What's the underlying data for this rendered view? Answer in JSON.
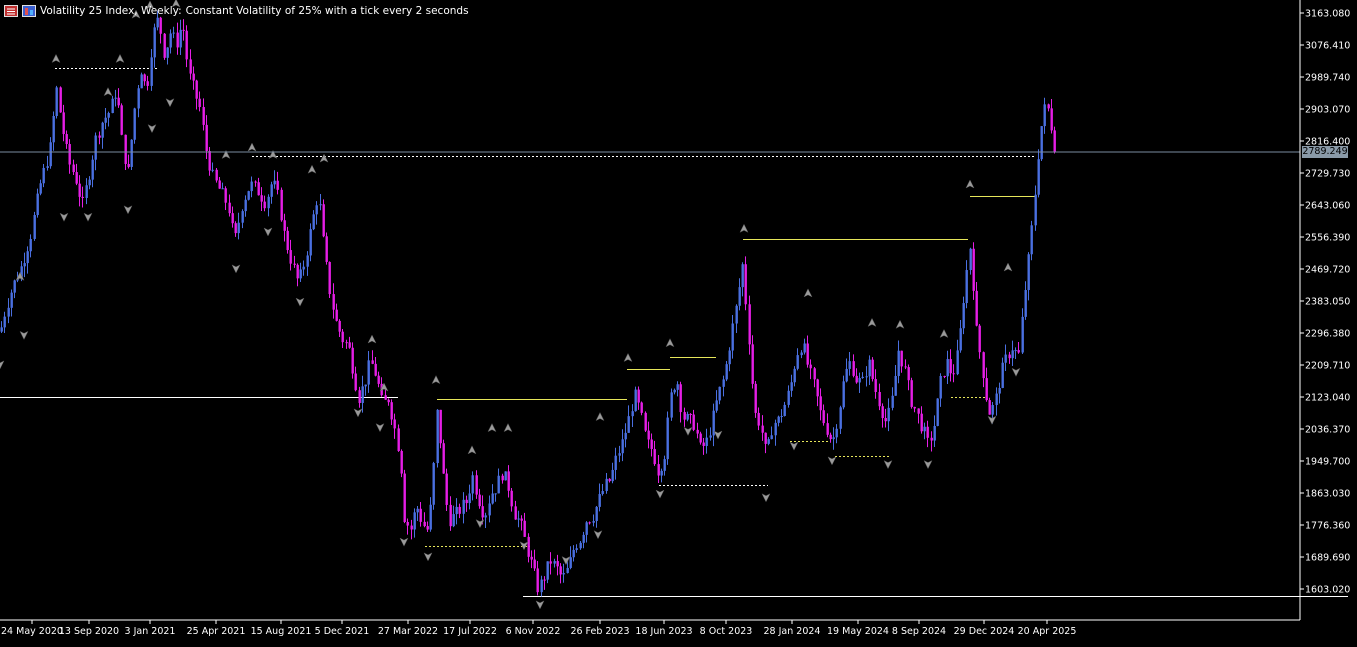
{
  "header": {
    "symbol_title": "Volatility 25 Index, Weekly:",
    "description": "Constant Volatility of 25% with a tick every 2 seconds"
  },
  "price_axis": {
    "tick_labels": [
      "3163.080",
      "3076.410",
      "2989.740",
      "2903.070",
      "2816.400",
      "2729.730",
      "2643.060",
      "2556.390",
      "2469.720",
      "2383.050",
      "2296.380",
      "2209.710",
      "2123.040",
      "2036.370",
      "1949.700",
      "1863.030",
      "1776.360",
      "1689.690",
      "1603.020"
    ],
    "current_price": "2789.249"
  },
  "time_axis": {
    "tick_labels": [
      "24 May 2020",
      "13 Sep 2020",
      "3 Jan 2021",
      "25 Apr 2021",
      "15 Aug 2021",
      "5 Dec 2021",
      "27 Mar 2022",
      "17 Jul 2022",
      "6 Nov 2022",
      "26 Feb 2023",
      "18 Jun 2023",
      "8 Oct 2023",
      "28 Jan 2024",
      "19 May 2024",
      "8 Sep 2024",
      "29 Dec 2024",
      "20 Apr 2025"
    ]
  },
  "colors": {
    "background": "#000000",
    "bull_candle": "#4a6fe0",
    "bear_candle": "#e61ee6",
    "grid_text": "#ffffff",
    "current_price_line": "#7a8da0",
    "level_dashed": "#ffffff",
    "level_yellow": "#e6e65a"
  },
  "chart_data": {
    "type": "candlestick",
    "symbol": "Volatility 25 Index",
    "timeframe": "Weekly",
    "ylim": [
      1561,
      3190
    ],
    "y_ticks": [
      3163.08,
      3076.41,
      2989.74,
      2903.07,
      2816.4,
      2729.73,
      2643.06,
      2556.39,
      2469.72,
      2383.05,
      2296.38,
      2209.71,
      2123.04,
      2036.37,
      1949.7,
      1863.03,
      1776.36,
      1689.69,
      1603.02
    ],
    "current_price": 2789.249,
    "path": [
      [
        0,
        2300
      ],
      [
        5,
        2360
      ],
      [
        12,
        2420
      ],
      [
        20,
        2470
      ],
      [
        30,
        2560
      ],
      [
        40,
        2700
      ],
      [
        50,
        2800
      ],
      [
        56,
        2960
      ],
      [
        62,
        2850
      ],
      [
        68,
        2760
      ],
      [
        75,
        2720
      ],
      [
        82,
        2640
      ],
      [
        88,
        2720
      ],
      [
        95,
        2820
      ],
      [
        102,
        2870
      ],
      [
        110,
        2900
      ],
      [
        116,
        2960
      ],
      [
        122,
        2800
      ],
      [
        128,
        2730
      ],
      [
        133,
        2880
      ],
      [
        140,
        3020
      ],
      [
        146,
        2950
      ],
      [
        152,
        3100
      ],
      [
        158,
        3150
      ],
      [
        164,
        3050
      ],
      [
        170,
        3110
      ],
      [
        176,
        3080
      ],
      [
        182,
        3140
      ],
      [
        188,
        3000
      ],
      [
        194,
        2950
      ],
      [
        200,
        2900
      ],
      [
        205,
        2800
      ],
      [
        212,
        2720
      ],
      [
        220,
        2680
      ],
      [
        228,
        2640
      ],
      [
        234,
        2540
      ],
      [
        242,
        2650
      ],
      [
        250,
        2700
      ],
      [
        258,
        2680
      ],
      [
        265,
        2650
      ],
      [
        272,
        2710
      ],
      [
        278,
        2660
      ],
      [
        284,
        2560
      ],
      [
        290,
        2500
      ],
      [
        298,
        2430
      ],
      [
        305,
        2500
      ],
      [
        312,
        2600
      ],
      [
        318,
        2680
      ],
      [
        322,
        2560
      ],
      [
        328,
        2430
      ],
      [
        335,
        2330
      ],
      [
        342,
        2280
      ],
      [
        348,
        2260
      ],
      [
        354,
        2180
      ],
      [
        358,
        2120
      ],
      [
        364,
        2160
      ],
      [
        370,
        2220
      ],
      [
        376,
        2180
      ],
      [
        382,
        2100
      ],
      [
        388,
        2120
      ],
      [
        394,
        2040
      ],
      [
        400,
        1960
      ],
      [
        404,
        1800
      ],
      [
        410,
        1760
      ],
      [
        416,
        1830
      ],
      [
        422,
        1780
      ],
      [
        428,
        1760
      ],
      [
        432,
        1880
      ],
      [
        437,
        2100
      ],
      [
        442,
        1930
      ],
      [
        448,
        1790
      ],
      [
        454,
        1800
      ],
      [
        460,
        1820
      ],
      [
        466,
        1840
      ],
      [
        472,
        1910
      ],
      [
        478,
        1850
      ],
      [
        484,
        1800
      ],
      [
        490,
        1860
      ],
      [
        496,
        1880
      ],
      [
        502,
        1920
      ],
      [
        508,
        1880
      ],
      [
        514,
        1810
      ],
      [
        520,
        1780
      ],
      [
        526,
        1720
      ],
      [
        532,
        1660
      ],
      [
        538,
        1600
      ],
      [
        544,
        1640
      ],
      [
        550,
        1680
      ],
      [
        556,
        1660
      ],
      [
        562,
        1630
      ],
      [
        568,
        1660
      ],
      [
        574,
        1720
      ],
      [
        580,
        1740
      ],
      [
        586,
        1790
      ],
      [
        592,
        1800
      ],
      [
        598,
        1840
      ],
      [
        604,
        1880
      ],
      [
        610,
        1900
      ],
      [
        616,
        1960
      ],
      [
        622,
        2000
      ],
      [
        628,
        2060
      ],
      [
        634,
        2130
      ],
      [
        640,
        2080
      ],
      [
        646,
        2000
      ],
      [
        652,
        1980
      ],
      [
        658,
        1920
      ],
      [
        664,
        1970
      ],
      [
        670,
        2120
      ],
      [
        676,
        2180
      ],
      [
        682,
        2070
      ],
      [
        688,
        2060
      ],
      [
        694,
        2050
      ],
      [
        700,
        1980
      ],
      [
        706,
        2000
      ],
      [
        712,
        2060
      ],
      [
        718,
        2130
      ],
      [
        724,
        2180
      ],
      [
        730,
        2280
      ],
      [
        736,
        2370
      ],
      [
        742,
        2480
      ],
      [
        748,
        2300
      ],
      [
        754,
        2080
      ],
      [
        760,
        2050
      ],
      [
        766,
        1960
      ],
      [
        772,
        2050
      ],
      [
        778,
        2060
      ],
      [
        784,
        2100
      ],
      [
        790,
        2150
      ],
      [
        796,
        2240
      ],
      [
        802,
        2270
      ],
      [
        808,
        2200
      ],
      [
        814,
        2150
      ],
      [
        820,
        2080
      ],
      [
        826,
        2040
      ],
      [
        832,
        2000
      ],
      [
        838,
        2080
      ],
      [
        844,
        2180
      ],
      [
        850,
        2220
      ],
      [
        856,
        2170
      ],
      [
        862,
        2160
      ],
      [
        868,
        2220
      ],
      [
        874,
        2150
      ],
      [
        880,
        2100
      ],
      [
        886,
        2050
      ],
      [
        892,
        2120
      ],
      [
        898,
        2250
      ],
      [
        904,
        2200
      ],
      [
        910,
        2120
      ],
      [
        916,
        2080
      ],
      [
        922,
        2040
      ],
      [
        928,
        1990
      ],
      [
        934,
        2050
      ],
      [
        940,
        2160
      ],
      [
        946,
        2220
      ],
      [
        952,
        2180
      ],
      [
        958,
        2250
      ],
      [
        964,
        2420
      ],
      [
        970,
        2540
      ],
      [
        976,
        2300
      ],
      [
        982,
        2200
      ],
      [
        988,
        2080
      ],
      [
        994,
        2100
      ],
      [
        1000,
        2180
      ],
      [
        1006,
        2230
      ],
      [
        1012,
        2260
      ],
      [
        1018,
        2230
      ],
      [
        1024,
        2400
      ],
      [
        1030,
        2540
      ],
      [
        1034,
        2660
      ],
      [
        1038,
        2790
      ],
      [
        1042,
        2880
      ],
      [
        1046,
        2920
      ],
      [
        1050,
        2870
      ],
      [
        1055,
        2790
      ]
    ],
    "levels": [
      {
        "y": 3015,
        "x1": 55,
        "x2": 158,
        "style": "dashed",
        "color": "#ffffff"
      },
      {
        "y": 2777,
        "x1": 252,
        "x2": 1036,
        "style": "dashed",
        "color": "#ffffff"
      },
      {
        "y": 2123,
        "x1": 0,
        "x2": 398,
        "style": "solid",
        "color": "#ffffff"
      },
      {
        "y": 2117,
        "x1": 437,
        "x2": 627,
        "style": "solid",
        "color": "#e6e65a"
      },
      {
        "y": 2198,
        "x1": 627,
        "x2": 670,
        "style": "solid",
        "color": "#e6e65a"
      },
      {
        "y": 2232,
        "x1": 670,
        "x2": 716,
        "style": "solid",
        "color": "#e6e65a"
      },
      {
        "y": 2552,
        "x1": 743,
        "x2": 968,
        "style": "solid",
        "color": "#e6e65a"
      },
      {
        "y": 2668,
        "x1": 970,
        "x2": 1036,
        "style": "solid",
        "color": "#e6e65a"
      },
      {
        "y": 1719,
        "x1": 425,
        "x2": 530,
        "style": "dashed",
        "color": "#e6e65a"
      },
      {
        "y": 1885,
        "x1": 659,
        "x2": 768,
        "style": "dashed",
        "color": "#ffffff"
      },
      {
        "y": 2003,
        "x1": 790,
        "x2": 830,
        "style": "dashed",
        "color": "#e6e65a"
      },
      {
        "y": 1963,
        "x1": 835,
        "x2": 890,
        "style": "dashed",
        "color": "#e6e65a"
      },
      {
        "y": 2123,
        "x1": 951,
        "x2": 986,
        "style": "dashed",
        "color": "#e6e65a"
      },
      {
        "y": 1583,
        "x1": 523,
        "x2": 1348,
        "style": "solid",
        "color": "#ffffff"
      }
    ],
    "fractal_up": [
      [
        20,
        2450
      ],
      [
        56,
        3040
      ],
      [
        108,
        2950
      ],
      [
        120,
        3040
      ],
      [
        136,
        3160
      ],
      [
        150,
        3185
      ],
      [
        176,
        3190
      ],
      [
        226,
        2780
      ],
      [
        252,
        2800
      ],
      [
        273,
        2780
      ],
      [
        312,
        2740
      ],
      [
        324,
        2770
      ],
      [
        372,
        2280
      ],
      [
        384,
        2150
      ],
      [
        436,
        2170
      ],
      [
        472,
        1980
      ],
      [
        492,
        2040
      ],
      [
        508,
        2040
      ],
      [
        600,
        2070
      ],
      [
        628,
        2230
      ],
      [
        670,
        2270
      ],
      [
        744,
        2580
      ],
      [
        808,
        2405
      ],
      [
        872,
        2325
      ],
      [
        900,
        2320
      ],
      [
        944,
        2295
      ],
      [
        970,
        2700
      ],
      [
        1008,
        2475
      ]
    ],
    "fractal_down": [
      [
        0,
        2210
      ],
      [
        24,
        2290
      ],
      [
        64,
        2610
      ],
      [
        88,
        2610
      ],
      [
        128,
        2630
      ],
      [
        152,
        2850
      ],
      [
        170,
        2920
      ],
      [
        236,
        2470
      ],
      [
        268,
        2570
      ],
      [
        300,
        2380
      ],
      [
        358,
        2080
      ],
      [
        380,
        2040
      ],
      [
        404,
        1730
      ],
      [
        428,
        1690
      ],
      [
        480,
        1780
      ],
      [
        524,
        1720
      ],
      [
        540,
        1560
      ],
      [
        566,
        1680
      ],
      [
        598,
        1750
      ],
      [
        660,
        1860
      ],
      [
        688,
        2030
      ],
      [
        718,
        2020
      ],
      [
        766,
        1850
      ],
      [
        794,
        1990
      ],
      [
        832,
        1950
      ],
      [
        888,
        1940
      ],
      [
        928,
        1940
      ],
      [
        992,
        2060
      ],
      [
        1016,
        2190
      ]
    ]
  }
}
